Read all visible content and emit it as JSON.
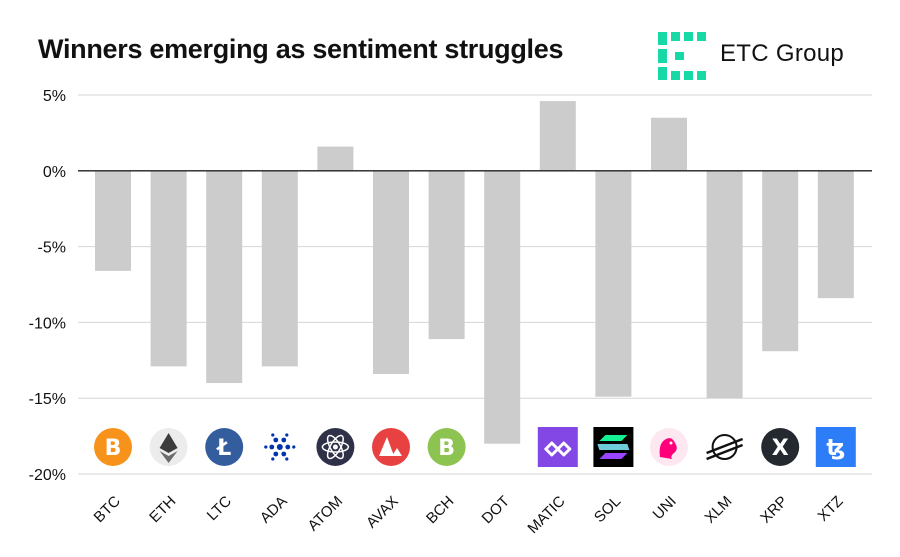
{
  "header": {
    "title": "Winners emerging as sentiment struggles",
    "brand": "ETC Group",
    "brand_color": "#16d9a6"
  },
  "chart_data": {
    "type": "bar",
    "title": "Winners emerging as sentiment struggles",
    "xlabel": "",
    "ylabel": "",
    "ylim": [
      -20,
      5
    ],
    "yticks": [
      5,
      0,
      -5,
      -10,
      -15,
      -20
    ],
    "ytick_labels": [
      "5%",
      "0%",
      "-5%",
      "-10%",
      "-15%",
      "-20%"
    ],
    "grid": true,
    "bar_color": "#cccccc",
    "categories": [
      "BTC",
      "ETH",
      "LTC",
      "ADA",
      "ATOM",
      "AVAX",
      "BCH",
      "DOT",
      "MATIC",
      "SOL",
      "UNI",
      "XLM",
      "XRP",
      "XTZ"
    ],
    "values": [
      -6.6,
      -12.9,
      -14.0,
      -12.9,
      1.6,
      -13.4,
      -11.1,
      -18.0,
      4.6,
      -14.9,
      3.5,
      -15.0,
      -11.9,
      -8.4
    ],
    "icons": [
      {
        "name": "bitcoin-icon",
        "bg": "#f7931a",
        "fg": "#ffffff",
        "glyph": "B",
        "shape": "circle"
      },
      {
        "name": "ethereum-icon",
        "bg": "#ececec",
        "fg": "#3c3c3d",
        "glyph": "eth",
        "shape": "circle"
      },
      {
        "name": "litecoin-icon",
        "bg": "#345d9d",
        "fg": "#ffffff",
        "glyph": "Ł",
        "shape": "circle"
      },
      {
        "name": "cardano-icon",
        "bg": "#ffffff",
        "fg": "#0033ad",
        "glyph": "dots",
        "shape": "circle"
      },
      {
        "name": "cosmos-icon",
        "bg": "#2e3148",
        "fg": "#ffffff",
        "glyph": "atom",
        "shape": "circle"
      },
      {
        "name": "avalanche-icon",
        "bg": "#e84142",
        "fg": "#ffffff",
        "glyph": "tri",
        "shape": "circle"
      },
      {
        "name": "bitcoin-cash-icon",
        "bg": "#8dc351",
        "fg": "#ffffff",
        "glyph": "B",
        "shape": "circle"
      },
      {
        "name": "polkadot-icon",
        "bg": "#ffffff",
        "fg": "#ffffff",
        "glyph": "",
        "shape": "none"
      },
      {
        "name": "polygon-icon",
        "bg": "#8247e5",
        "fg": "#ffffff",
        "glyph": "poly",
        "shape": "square"
      },
      {
        "name": "solana-icon",
        "bg": "#000000",
        "fg": "#14f195",
        "glyph": "sol",
        "shape": "square"
      },
      {
        "name": "uniswap-icon",
        "bg": "#fde7f1",
        "fg": "#ff007a",
        "glyph": "uni",
        "shape": "circle"
      },
      {
        "name": "stellar-icon",
        "bg": "#ffffff",
        "fg": "#111111",
        "glyph": "xlm",
        "shape": "circle"
      },
      {
        "name": "xrp-icon",
        "bg": "#23292f",
        "fg": "#ffffff",
        "glyph": "X",
        "shape": "circle"
      },
      {
        "name": "tezos-icon",
        "bg": "#2c7df7",
        "fg": "#ffffff",
        "glyph": "ꜩ",
        "shape": "square"
      }
    ]
  }
}
